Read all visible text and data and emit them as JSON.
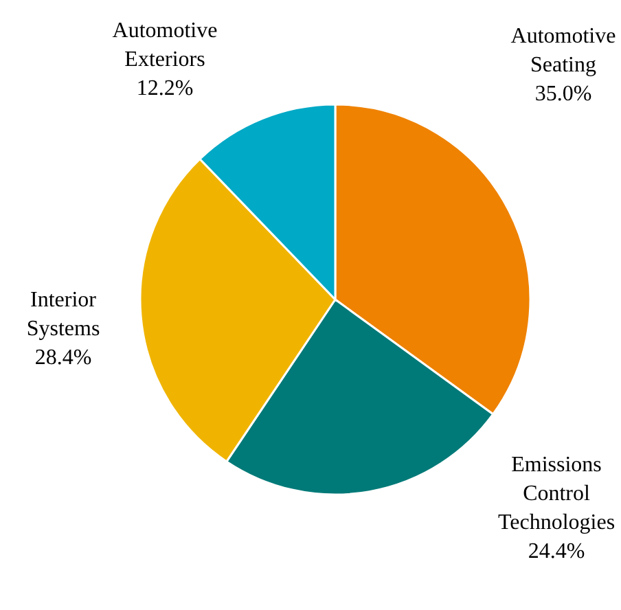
{
  "chart_data": {
    "type": "pie",
    "categories": [
      "Automotive Seating",
      "Emissions Control Technologies",
      "Interior Systems",
      "Automotive Exteriors"
    ],
    "values": [
      35.0,
      24.4,
      28.4,
      12.2
    ],
    "value_labels": [
      "35.0%",
      "24.4%",
      "28.4%",
      "12.2%"
    ],
    "colors": [
      "#ef8200",
      "#007a78",
      "#f0b400",
      "#00a9c6"
    ]
  }
}
